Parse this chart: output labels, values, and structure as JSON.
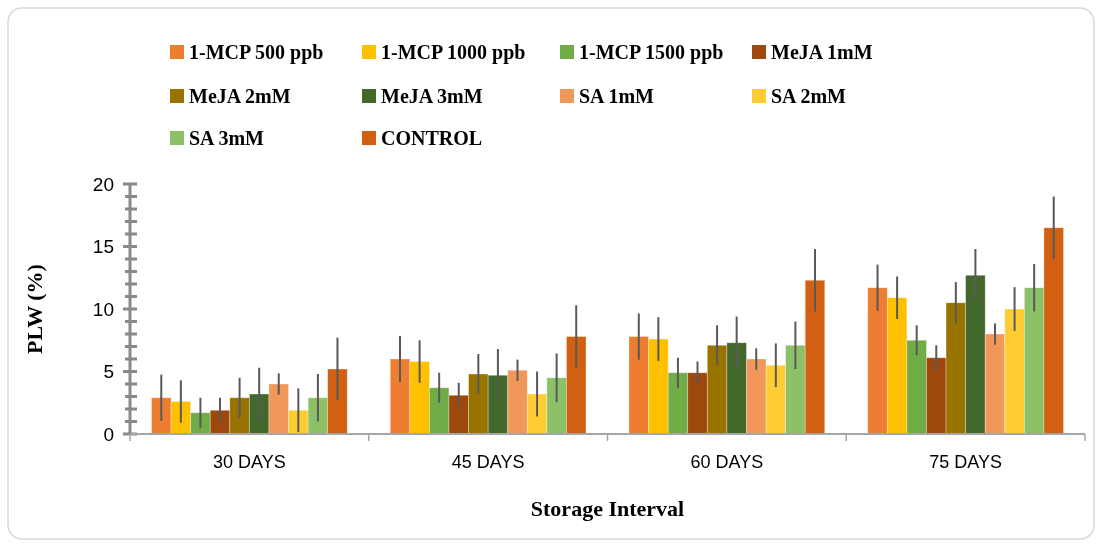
{
  "chart_data": {
    "type": "bar",
    "xlabel": "Storage Interval",
    "ylabel": "PLW (%)",
    "categories": [
      "30 DAYS",
      "45 DAYS",
      "60 DAYS",
      "75 DAYS"
    ],
    "ylim": [
      0,
      20
    ],
    "yticks": [
      0,
      {
        "value": 1,
        "label": null
      },
      {
        "value": 2,
        "label": null
      },
      {
        "value": 3,
        "label": null
      },
      {
        "value": 4,
        "label": null
      },
      5,
      {
        "value": 6,
        "label": null
      },
      {
        "value": 7,
        "label": null
      },
      {
        "value": 8,
        "label": null
      },
      {
        "value": 9,
        "label": null
      },
      10,
      {
        "value": 11,
        "label": null
      },
      {
        "value": 12,
        "label": null
      },
      {
        "value": 13,
        "label": null
      },
      {
        "value": 14,
        "label": null
      },
      15,
      {
        "value": 16,
        "label": null
      },
      {
        "value": 17,
        "label": null
      },
      {
        "value": 18,
        "label": null
      },
      {
        "value": 19,
        "label": null
      },
      20
    ],
    "grid": false,
    "legend": "top",
    "series": [
      {
        "name": "1-MCP 500 ppb",
        "color": "#ed7d31",
        "values": [
          2.9,
          6.0,
          7.8,
          11.7
        ],
        "errors": [
          1.85,
          1.85,
          1.85,
          1.85
        ]
      },
      {
        "name": "1-MCP 1000 ppb",
        "color": "#ffc000",
        "values": [
          2.6,
          5.8,
          7.6,
          10.9
        ],
        "errors": [
          1.7,
          1.7,
          1.75,
          1.7
        ]
      },
      {
        "name": "1-MCP 1500 ppb",
        "color": "#70ad47",
        "values": [
          1.7,
          3.7,
          4.9,
          7.5
        ],
        "errors": [
          1.2,
          1.2,
          1.2,
          1.2
        ]
      },
      {
        "name": "MeJA 1mM",
        "color": "#9e480e",
        "values": [
          1.9,
          3.1,
          4.9,
          6.1
        ],
        "errors": [
          1.0,
          1.0,
          0.9,
          1.0
        ]
      },
      {
        "name": "MeJA 2mM",
        "color": "#997300",
        "values": [
          2.9,
          4.8,
          7.1,
          10.5
        ],
        "errors": [
          1.6,
          1.6,
          1.6,
          1.65
        ]
      },
      {
        "name": "MeJA 3mM",
        "color": "#43682b",
        "values": [
          3.2,
          4.7,
          7.3,
          12.7
        ],
        "errors": [
          2.1,
          2.1,
          2.1,
          2.1
        ]
      },
      {
        "name": "SA 1mM",
        "color": "#f1975a",
        "values": [
          4.0,
          5.1,
          6.0,
          8.0
        ],
        "errors": [
          0.85,
          0.85,
          0.85,
          0.85
        ]
      },
      {
        "name": "SA 2mM",
        "color": "#ffcd33",
        "values": [
          1.9,
          3.2,
          5.5,
          10.0
        ],
        "errors": [
          1.75,
          1.8,
          1.75,
          1.75
        ]
      },
      {
        "name": "SA 3mM",
        "color": "#8cc168",
        "values": [
          2.9,
          4.5,
          7.1,
          11.7
        ],
        "errors": [
          1.9,
          1.95,
          1.9,
          1.9
        ]
      },
      {
        "name": "CONTROL",
        "color": "#d26012",
        "values": [
          5.2,
          7.8,
          12.3,
          16.5
        ],
        "errors": [
          2.5,
          2.5,
          2.5,
          2.5
        ]
      }
    ]
  }
}
